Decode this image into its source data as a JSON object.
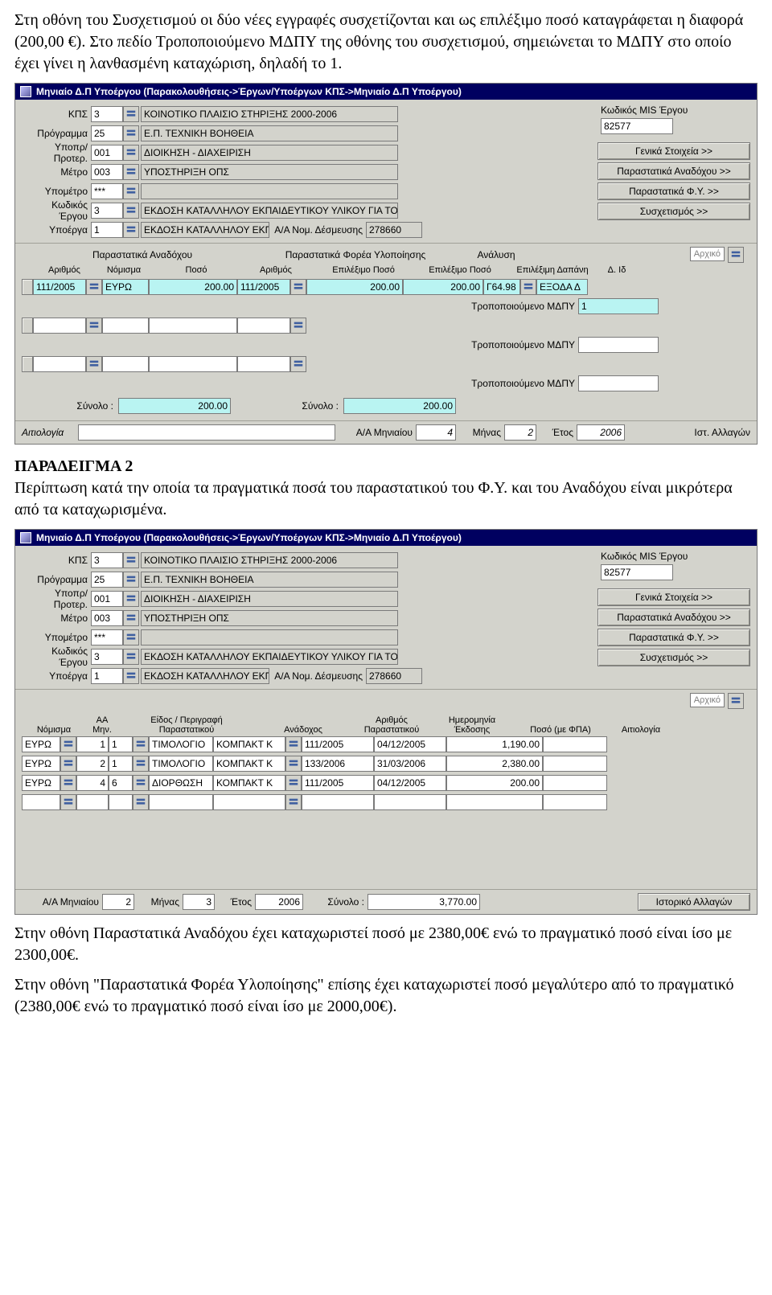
{
  "colors": {
    "bg_panel": "#d3d3cc",
    "titlebar": "#000060",
    "field_bg": "#ffffff",
    "field_cyan": "#b9f4f2",
    "border": "#7a7a7a"
  },
  "prose": {
    "p1": "Στη οθόνη του Συσχετισμού οι δύο νέες εγγραφές συσχετίζονται και ως επιλέξιμο ποσό καταγράφεται η διαφορά (200,00 €). Στο πεδίο Τροποποιούμενο ΜΔΠΥ της οθόνης του συσχετισμού, σημειώνεται το ΜΔΠΥ στο οποίο έχει γίνει η λανθασμένη καταχώριση, δηλαδή το 1.",
    "heading2": "ΠΑΡΑΔΕΙΓΜΑ 2",
    "p2": "Περίπτωση κατά την οποία τα πραγματικά ποσά του παραστατικού του Φ.Υ. και του Αναδόχου είναι μικρότερα από τα καταχωρισμένα.",
    "p3": "Στην οθόνη Παραστατικά Αναδόχου έχει καταχωριστεί ποσό με 2380,00€ ενώ το πραγματικό ποσό είναι ίσο με 2300,00€.",
    "p4": "Στην οθόνη \"Παραστατικά Φορέα Υλοποίησης\" επίσης έχει καταχωριστεί ποσό μεγαλύτερο από το πραγματικό (2380,00€ ενώ το πραγματικό ποσό είναι ίσο με 2000,00€)."
  },
  "win_title": "Μηνιαίο Δ.Π Υποέργου (Παρακολουθήσεις->Έργων/Υποέργων ΚΠΣ->Μηνιαίο Δ.Π Υποέργου)",
  "header_labels": {
    "kps": "ΚΠΣ",
    "programma": "Πρόγραμμα",
    "ypopr": "Υποπρ/Προτερ.",
    "metro": "Μέτρο",
    "ypometro": "Υπομέτρο",
    "kod_ergou": "Κωδικός Έργου",
    "ypoerga": "Υποέργα",
    "mis_label": "Κωδικός MIS Έργου"
  },
  "header_values": {
    "kps": "3",
    "kps_desc": "ΚΟΙΝΟΤΙΚΟ ΠΛΑΙΣΙΟ ΣΤΗΡΙΞΗΣ 2000-2006",
    "programma": "25",
    "programma_desc": "Ε.Π. ΤΕΧΝΙΚΗ ΒΟΗΘΕΙΑ",
    "ypopr": "001",
    "ypopr_desc": "ΔΙΟΙΚΗΣΗ - ΔΙΑΧΕΙΡΙΣΗ",
    "metro": "003",
    "metro_desc": "ΥΠΟΣΤΗΡΙΞΗ ΟΠΣ",
    "ypometro": "***",
    "ypometro_desc": "",
    "kod_ergou": "3",
    "kod_ergou_desc": "ΕΚΔΟΣΗ ΚΑΤΑΛΛΗΛΟΥ ΕΚΠΑΙΔΕΥΤΙΚΟΥ ΥΛΙΚΟΥ ΓΙΑ ΤΟ ΟΛΟ",
    "ypoerga": "1",
    "ypoerga_desc": "ΕΚΔΟΣΗ ΚΑΤΑΛΛΗΛΟΥ ΕΚΠ",
    "aa_desm_label": "Α/Α Νομ. Δέσμευσης",
    "aa_desm": "278660",
    "mis": "82577"
  },
  "side_buttons": {
    "b1": "Γενικά Στοιχεία >>",
    "b2": "Παραστατικά Αναδόχου >>",
    "b3": "Παραστατικά Φ.Υ. >>",
    "b4": "Συσχετισμός >>"
  },
  "screen1": {
    "group_anadoxou": "Παραστατικά Αναδόχου",
    "group_forea": "Παραστατικά Φορέα Υλοποίησης",
    "group_analysi": "Ανάλυση",
    "cols": {
      "arithmos": "Αριθμός",
      "nomisma": "Νόμισμα",
      "poso": "Ποσό",
      "epil_poso": "Επιλέξιμο Ποσό",
      "epil_dapani": "Επιλέξιμη Δαπάνη",
      "d_id": "Δ. Ιδ"
    },
    "arxiko": "Αρχικό",
    "row": {
      "arithmos1": "111/2005",
      "nomisma": "ΕΥΡΩ",
      "poso1": "200.00",
      "arithmos2": "111/2005",
      "poso2": "200.00",
      "epil_poso": "200.00",
      "code": "Γ64.98",
      "dap": "ΕΞΟΔΑ Δ"
    },
    "mdpy_label": "Τροποποιούμενο ΜΔΠΥ",
    "mdpy_val": "1",
    "sum_label": "Σύνολο :",
    "sum1": "200.00",
    "sum2": "200.00"
  },
  "footer1": {
    "aitio_label": "Αιτιολογία",
    "aa_label": "Α/Α Μηνιαίου",
    "aa_val": "4",
    "minas_label": "Μήνας",
    "minas_val": "2",
    "etos_label": "Έτος",
    "etos_val": "2006",
    "ist": "Ιστ. Αλλαγών"
  },
  "screen2": {
    "cols": {
      "nomisma": "Νόμισμα",
      "aa_min": "ΑΑ\nΜην.",
      "eidos": "Είδος / Περιγραφή\nΠαραστατικού",
      "anadoxos": "Ανάδοχος",
      "arithmos": "Αριθμός\nΠαραστατικού",
      "hmer": "Ημερομηνία\nΈκδοσης",
      "poso": "Ποσό (με ΦΠΑ)",
      "aitio": "Αιτιολογία"
    },
    "arxiko": "Αρχικό",
    "rows": [
      {
        "nomisma": "ΕΥΡΩ",
        "aa": "1",
        "eidos": "1",
        "perigr": "ΤΙΜΟΛΟΓΙΟ",
        "anad": "ΚΟΜΠΑΚΤ Κ",
        "arith": "111/2005",
        "hmer": "04/12/2005",
        "poso": "1,190.00"
      },
      {
        "nomisma": "ΕΥΡΩ",
        "aa": "2",
        "eidos": "1",
        "perigr": "ΤΙΜΟΛΟΓΙΟ",
        "anad": "ΚΟΜΠΑΚΤ Κ",
        "arith": "133/2006",
        "hmer": "31/03/2006",
        "poso": "2,380.00"
      },
      {
        "nomisma": "ΕΥΡΩ",
        "aa": "4",
        "eidos": "6",
        "perigr": "ΔΙΟΡΘΩΣΗ",
        "anad": "ΚΟΜΠΑΚΤ Κ",
        "arith": "111/2005",
        "hmer": "04/12/2005",
        "poso": "200.00"
      }
    ],
    "footer": {
      "aa_label": "Α/Α Μηνιαίου",
      "aa_val": "2",
      "minas_label": "Μήνας",
      "minas_val": "3",
      "etos_label": "Έτος",
      "etos_val": "2006",
      "sum_label": "Σύνολο :",
      "sum_val": "3,770.00",
      "ist": "Ιστορικό Αλλαγών"
    }
  }
}
